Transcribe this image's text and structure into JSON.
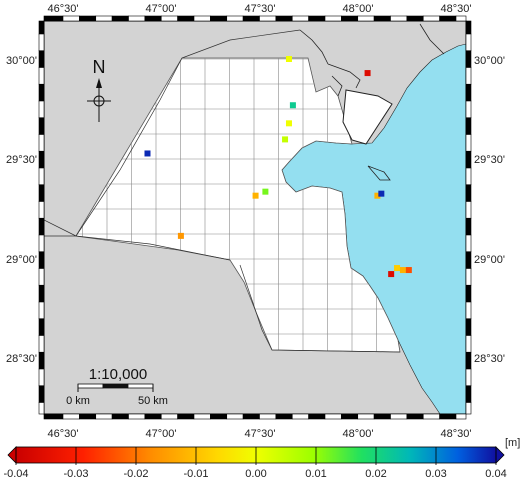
{
  "map": {
    "longitude_labels": [
      "46°30'",
      "47°00'",
      "47°30'",
      "48°00'",
      "48°30'"
    ],
    "latitude_labels": [
      "30°00'",
      "29°30'",
      "29°00'",
      "28°30'"
    ],
    "north_arrow_label": "N",
    "scale_ratio": "1:10,000",
    "scale_labels": [
      "0 km",
      "50 km"
    ],
    "colors": {
      "land": "#d3d3d3",
      "sea": "#94dff0",
      "study_area": "#ffffff",
      "grid": "#888888",
      "frame": "#000000"
    }
  },
  "points": [
    {
      "lon": 48.05,
      "lat": 29.93,
      "value": -0.036
    },
    {
      "lon": 47.65,
      "lat": 30.0,
      "value": 0.0
    },
    {
      "lon": 47.67,
      "lat": 29.77,
      "value": 0.022
    },
    {
      "lon": 47.65,
      "lat": 29.68,
      "value": 0.0
    },
    {
      "lon": 47.63,
      "lat": 29.6,
      "value": 0.005
    },
    {
      "lon": 46.93,
      "lat": 29.53,
      "value": 0.038
    },
    {
      "lon": 47.53,
      "lat": 29.34,
      "value": 0.012
    },
    {
      "lon": 47.48,
      "lat": 29.32,
      "value": -0.012
    },
    {
      "lon": 48.1,
      "lat": 29.32,
      "value": -0.012
    },
    {
      "lon": 48.12,
      "lat": 29.33,
      "value": 0.038
    },
    {
      "lon": 47.1,
      "lat": 29.12,
      "value": -0.016
    },
    {
      "lon": 48.17,
      "lat": 28.93,
      "value": -0.036
    },
    {
      "lon": 48.2,
      "lat": 28.96,
      "value": -0.008
    },
    {
      "lon": 48.23,
      "lat": 28.95,
      "value": -0.012
    },
    {
      "lon": 48.26,
      "lat": 28.95,
      "value": -0.024
    }
  ],
  "colorbar": {
    "ticks": [
      "-0.04",
      "-0.03",
      "-0.02",
      "-0.01",
      "0.00",
      "0.01",
      "0.02",
      "0.03",
      "0.04"
    ],
    "unit": "[m]",
    "min": -0.04,
    "max": 0.04
  }
}
